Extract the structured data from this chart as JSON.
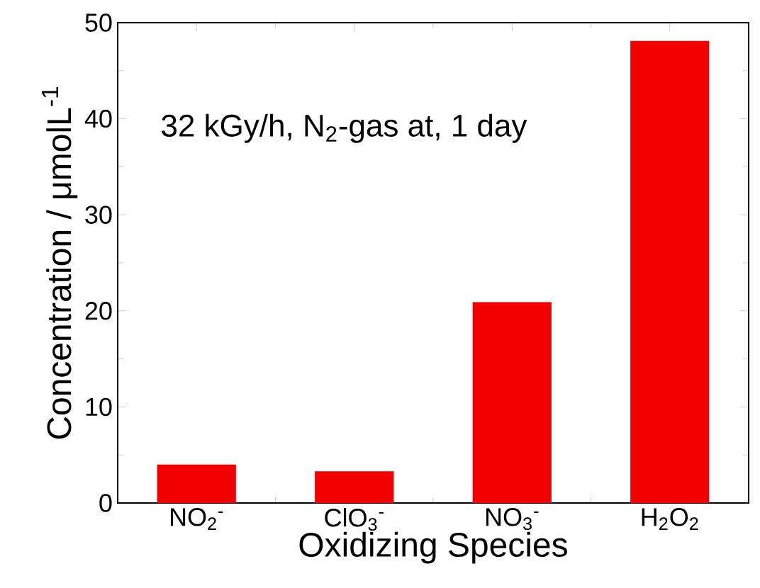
{
  "chart_data": {
    "type": "bar",
    "xlabel": "Oxidizing Species",
    "ylabel": "Concentration / μmolL$^{-1}$",
    "categories": [
      "NO$_{2}$$^{-}$",
      "ClO$_{3}$$^{-}$",
      "NO$_{3}$$^{-}$",
      "H$_{2}$O$_{2}$"
    ],
    "values": [
      4.0,
      3.3,
      20.9,
      48.1
    ],
    "color": "#f20000",
    "ylim": [
      0,
      50
    ],
    "yticks": [
      0,
      10,
      20,
      30,
      40,
      50
    ],
    "annotations": [
      "32 kGy/h, N$_{2}$-gas at, 1 day"
    ]
  }
}
